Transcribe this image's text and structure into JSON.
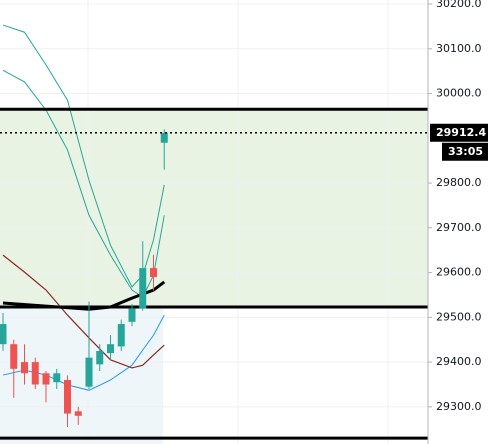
{
  "chart_data": {
    "type": "candlestick",
    "ylim": [
      29217,
      30209
    ],
    "yticks": [
      {
        "value": 30200,
        "label": "30200.0"
      },
      {
        "value": 30100,
        "label": "30100.0"
      },
      {
        "value": 30000,
        "label": "30000.0"
      },
      {
        "value": 29800,
        "label": "29800.0"
      },
      {
        "value": 29700,
        "label": "29700.0"
      },
      {
        "value": 29600,
        "label": "29600.0"
      },
      {
        "value": 29500,
        "label": "29500.0"
      },
      {
        "value": 29400,
        "label": "29400.0"
      },
      {
        "value": 29300,
        "label": "29300.0"
      }
    ],
    "grid": true,
    "up_color": "#26a69a",
    "down_color": "#ef5350",
    "open": [
      29440,
      29440,
      29400,
      29400,
      29375,
      29355,
      29360,
      29290,
      29345,
      29395,
      29420,
      29435,
      29490,
      29520,
      29610,
      29890
    ],
    "close": [
      29485,
      29385,
      29375,
      29350,
      29350,
      29375,
      29285,
      29280,
      29410,
      29425,
      29440,
      29485,
      29520,
      29610,
      29590,
      29912.4
    ],
    "high": [
      29510,
      29450,
      29440,
      29410,
      29380,
      29385,
      29370,
      29300,
      29535,
      29440,
      29460,
      29495,
      29530,
      29670,
      29640,
      29920
    ],
    "low": [
      29425,
      29320,
      29350,
      29340,
      29310,
      29340,
      29255,
      29260,
      29340,
      29380,
      29405,
      29425,
      29480,
      29515,
      29560,
      29830
    ],
    "lines": [
      {
        "color": "#26a69a",
        "width": 1,
        "x": [
          0,
          2,
          4,
          6,
          8,
          10,
          12,
          13,
          14,
          15
        ],
        "values": [
          30153,
          30137,
          30064,
          29985,
          29806,
          29661,
          29568,
          29594,
          29673,
          29796
        ]
      },
      {
        "color": "#26a69a",
        "width": 1,
        "x": [
          0,
          2,
          4,
          6,
          8,
          10,
          12,
          13,
          14,
          15
        ],
        "values": [
          30052,
          30026,
          29963,
          29874,
          29728,
          29639,
          29561,
          29545,
          29594,
          29728
        ]
      },
      {
        "color": "#2196f3",
        "width": 1,
        "x": [
          0,
          2,
          4,
          6,
          8,
          10,
          12,
          13,
          14,
          15
        ],
        "values": [
          29371,
          29382,
          29371,
          29349,
          29337,
          29360,
          29393,
          29427,
          29460,
          29505
        ]
      },
      {
        "color": "#8b2a1e",
        "width": 1.2,
        "x": [
          0,
          2,
          4,
          6,
          8,
          10,
          12,
          13,
          14,
          15
        ],
        "values": [
          29639,
          29601,
          29561,
          29505,
          29454,
          29405,
          29387,
          29393,
          29416,
          29438
        ]
      },
      {
        "color": "#000000",
        "width": 3,
        "x": [
          0,
          4,
          8,
          10,
          12,
          14,
          15
        ],
        "values": [
          29532,
          29525,
          29518,
          29523,
          29543,
          29561,
          29579
        ]
      }
    ],
    "levels": [
      29965,
      29523,
      29230
    ],
    "last_price": 29912.4,
    "countdown": "33:05"
  }
}
